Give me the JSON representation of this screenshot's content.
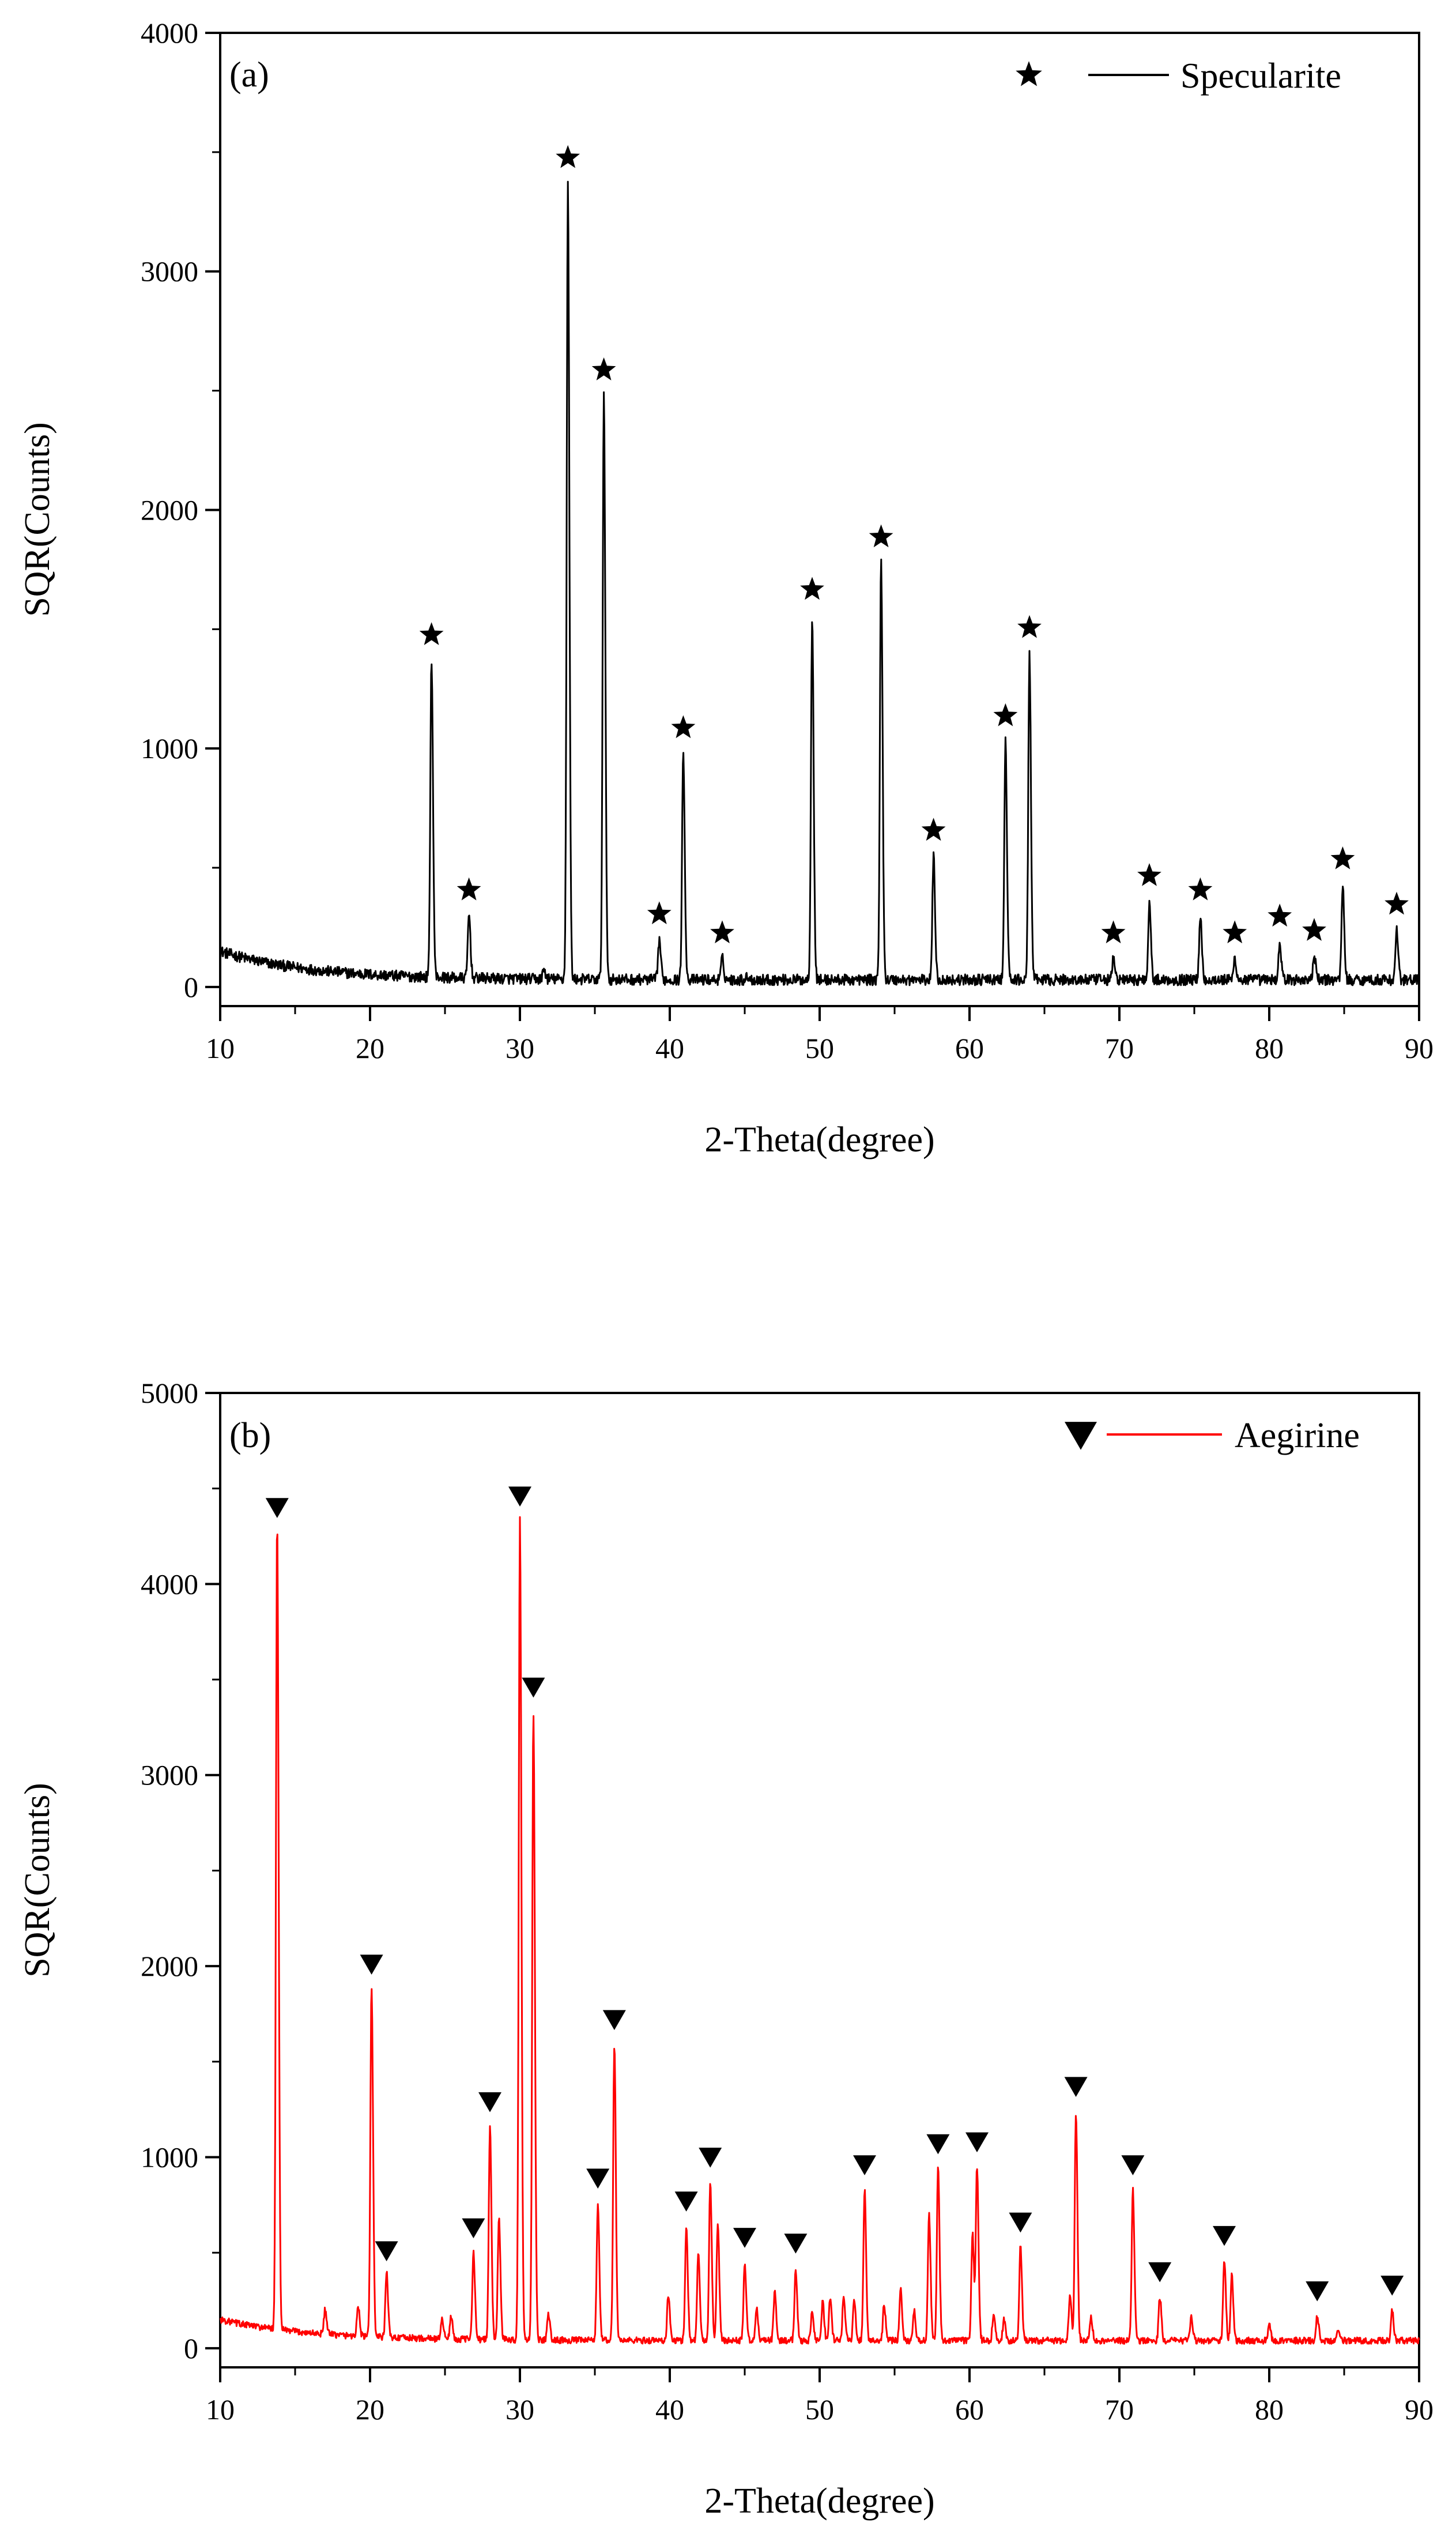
{
  "chart_data": [
    {
      "type": "line",
      "panel_label": "(a)",
      "xlabel": "2-Theta(degree)",
      "ylabel": "SQR(Counts)",
      "xlim": [
        10,
        90
      ],
      "ylim": [
        -80,
        4000
      ],
      "x_ticks": [
        10,
        20,
        30,
        40,
        50,
        60,
        70,
        80,
        90
      ],
      "y_ticks": [
        0,
        1000,
        2000,
        3000,
        4000
      ],
      "legend": {
        "label": "Specularite",
        "marker": "star",
        "position": "top-right"
      },
      "series": [
        {
          "name": "Specularite",
          "color": "#000000",
          "baseline_start": 150,
          "baseline": 30,
          "peaks": [
            {
              "x": 24.1,
              "y": 1370,
              "marked": true
            },
            {
              "x": 26.6,
              "y": 300,
              "marked": true
            },
            {
              "x": 33.2,
              "y": 3370,
              "marked": true
            },
            {
              "x": 35.6,
              "y": 2480,
              "marked": true
            },
            {
              "x": 39.3,
              "y": 200,
              "marked": true
            },
            {
              "x": 40.9,
              "y": 980,
              "marked": true
            },
            {
              "x": 43.5,
              "y": 120,
              "marked": true
            },
            {
              "x": 49.5,
              "y": 1560,
              "marked": true
            },
            {
              "x": 54.1,
              "y": 1780,
              "marked": true
            },
            {
              "x": 57.6,
              "y": 550,
              "marked": true
            },
            {
              "x": 62.4,
              "y": 1030,
              "marked": true
            },
            {
              "x": 64.0,
              "y": 1400,
              "marked": true
            },
            {
              "x": 69.6,
              "y": 120,
              "marked": true
            },
            {
              "x": 72.0,
              "y": 360,
              "marked": true
            },
            {
              "x": 75.4,
              "y": 300,
              "marked": true
            },
            {
              "x": 77.7,
              "y": 120,
              "marked": true
            },
            {
              "x": 80.7,
              "y": 190,
              "marked": true
            },
            {
              "x": 83.0,
              "y": 130,
              "marked": true
            },
            {
              "x": 84.9,
              "y": 430,
              "marked": true
            },
            {
              "x": 88.5,
              "y": 240,
              "marked": true
            },
            {
              "x": 31.6,
              "y": 70,
              "marked": false
            },
            {
              "x": 45.2,
              "y": 45,
              "marked": false
            }
          ]
        }
      ]
    },
    {
      "type": "line",
      "panel_label": "(b)",
      "xlabel": "2-Theta(degree)",
      "ylabel": "SQR(Counts)",
      "xlim": [
        10,
        90
      ],
      "ylim": [
        -100,
        5000
      ],
      "x_ticks": [
        10,
        20,
        30,
        40,
        50,
        60,
        70,
        80,
        90
      ],
      "y_ticks": [
        0,
        1000,
        2000,
        3000,
        4000,
        5000
      ],
      "legend": {
        "label": "Aegirine",
        "marker": "triangle-down",
        "position": "top-right"
      },
      "series": [
        {
          "name": "Aegirine",
          "color": "#ff0000",
          "baseline_start": 150,
          "baseline": 40,
          "peaks": [
            {
              "x": 13.8,
              "y": 4270,
              "marked": true
            },
            {
              "x": 20.1,
              "y": 1880,
              "marked": true
            },
            {
              "x": 21.1,
              "y": 380,
              "marked": true
            },
            {
              "x": 26.9,
              "y": 500,
              "marked": true
            },
            {
              "x": 28.0,
              "y": 1160,
              "marked": true
            },
            {
              "x": 30.0,
              "y": 4330,
              "marked": true
            },
            {
              "x": 30.9,
              "y": 3330,
              "marked": true
            },
            {
              "x": 35.2,
              "y": 760,
              "marked": true
            },
            {
              "x": 36.3,
              "y": 1590,
              "marked": true
            },
            {
              "x": 41.1,
              "y": 640,
              "marked": true
            },
            {
              "x": 42.7,
              "y": 870,
              "marked": true
            },
            {
              "x": 45.0,
              "y": 450,
              "marked": true
            },
            {
              "x": 48.4,
              "y": 420,
              "marked": true
            },
            {
              "x": 53.0,
              "y": 830,
              "marked": true
            },
            {
              "x": 57.9,
              "y": 940,
              "marked": true
            },
            {
              "x": 60.5,
              "y": 950,
              "marked": true
            },
            {
              "x": 63.4,
              "y": 530,
              "marked": true
            },
            {
              "x": 67.1,
              "y": 1240,
              "marked": true
            },
            {
              "x": 70.9,
              "y": 830,
              "marked": true
            },
            {
              "x": 72.7,
              "y": 270,
              "marked": true
            },
            {
              "x": 77.0,
              "y": 460,
              "marked": true
            },
            {
              "x": 83.2,
              "y": 170,
              "marked": true
            },
            {
              "x": 88.2,
              "y": 200,
              "marked": true
            },
            {
              "x": 17.0,
              "y": 170,
              "marked": false
            },
            {
              "x": 19.2,
              "y": 200,
              "marked": false
            },
            {
              "x": 24.8,
              "y": 150,
              "marked": false
            },
            {
              "x": 25.4,
              "y": 160,
              "marked": false
            },
            {
              "x": 28.6,
              "y": 680,
              "marked": false
            },
            {
              "x": 31.9,
              "y": 180,
              "marked": false
            },
            {
              "x": 39.9,
              "y": 280,
              "marked": false
            },
            {
              "x": 41.9,
              "y": 500,
              "marked": false
            },
            {
              "x": 43.2,
              "y": 660,
              "marked": false
            },
            {
              "x": 45.8,
              "y": 200,
              "marked": false
            },
            {
              "x": 47.0,
              "y": 290,
              "marked": false
            },
            {
              "x": 49.5,
              "y": 200,
              "marked": false
            },
            {
              "x": 50.2,
              "y": 240,
              "marked": false
            },
            {
              "x": 50.7,
              "y": 260,
              "marked": false
            },
            {
              "x": 51.6,
              "y": 280,
              "marked": false
            },
            {
              "x": 52.3,
              "y": 250,
              "marked": false
            },
            {
              "x": 54.3,
              "y": 230,
              "marked": false
            },
            {
              "x": 55.4,
              "y": 310,
              "marked": false
            },
            {
              "x": 56.3,
              "y": 200,
              "marked": false
            },
            {
              "x": 57.3,
              "y": 700,
              "marked": false
            },
            {
              "x": 60.2,
              "y": 600,
              "marked": false
            },
            {
              "x": 61.6,
              "y": 180,
              "marked": false
            },
            {
              "x": 62.3,
              "y": 150,
              "marked": false
            },
            {
              "x": 66.7,
              "y": 280,
              "marked": false
            },
            {
              "x": 68.1,
              "y": 170,
              "marked": false
            },
            {
              "x": 74.8,
              "y": 160,
              "marked": false
            },
            {
              "x": 77.5,
              "y": 380,
              "marked": false
            },
            {
              "x": 80.0,
              "y": 120,
              "marked": false
            },
            {
              "x": 84.6,
              "y": 100,
              "marked": false
            }
          ]
        }
      ]
    }
  ]
}
